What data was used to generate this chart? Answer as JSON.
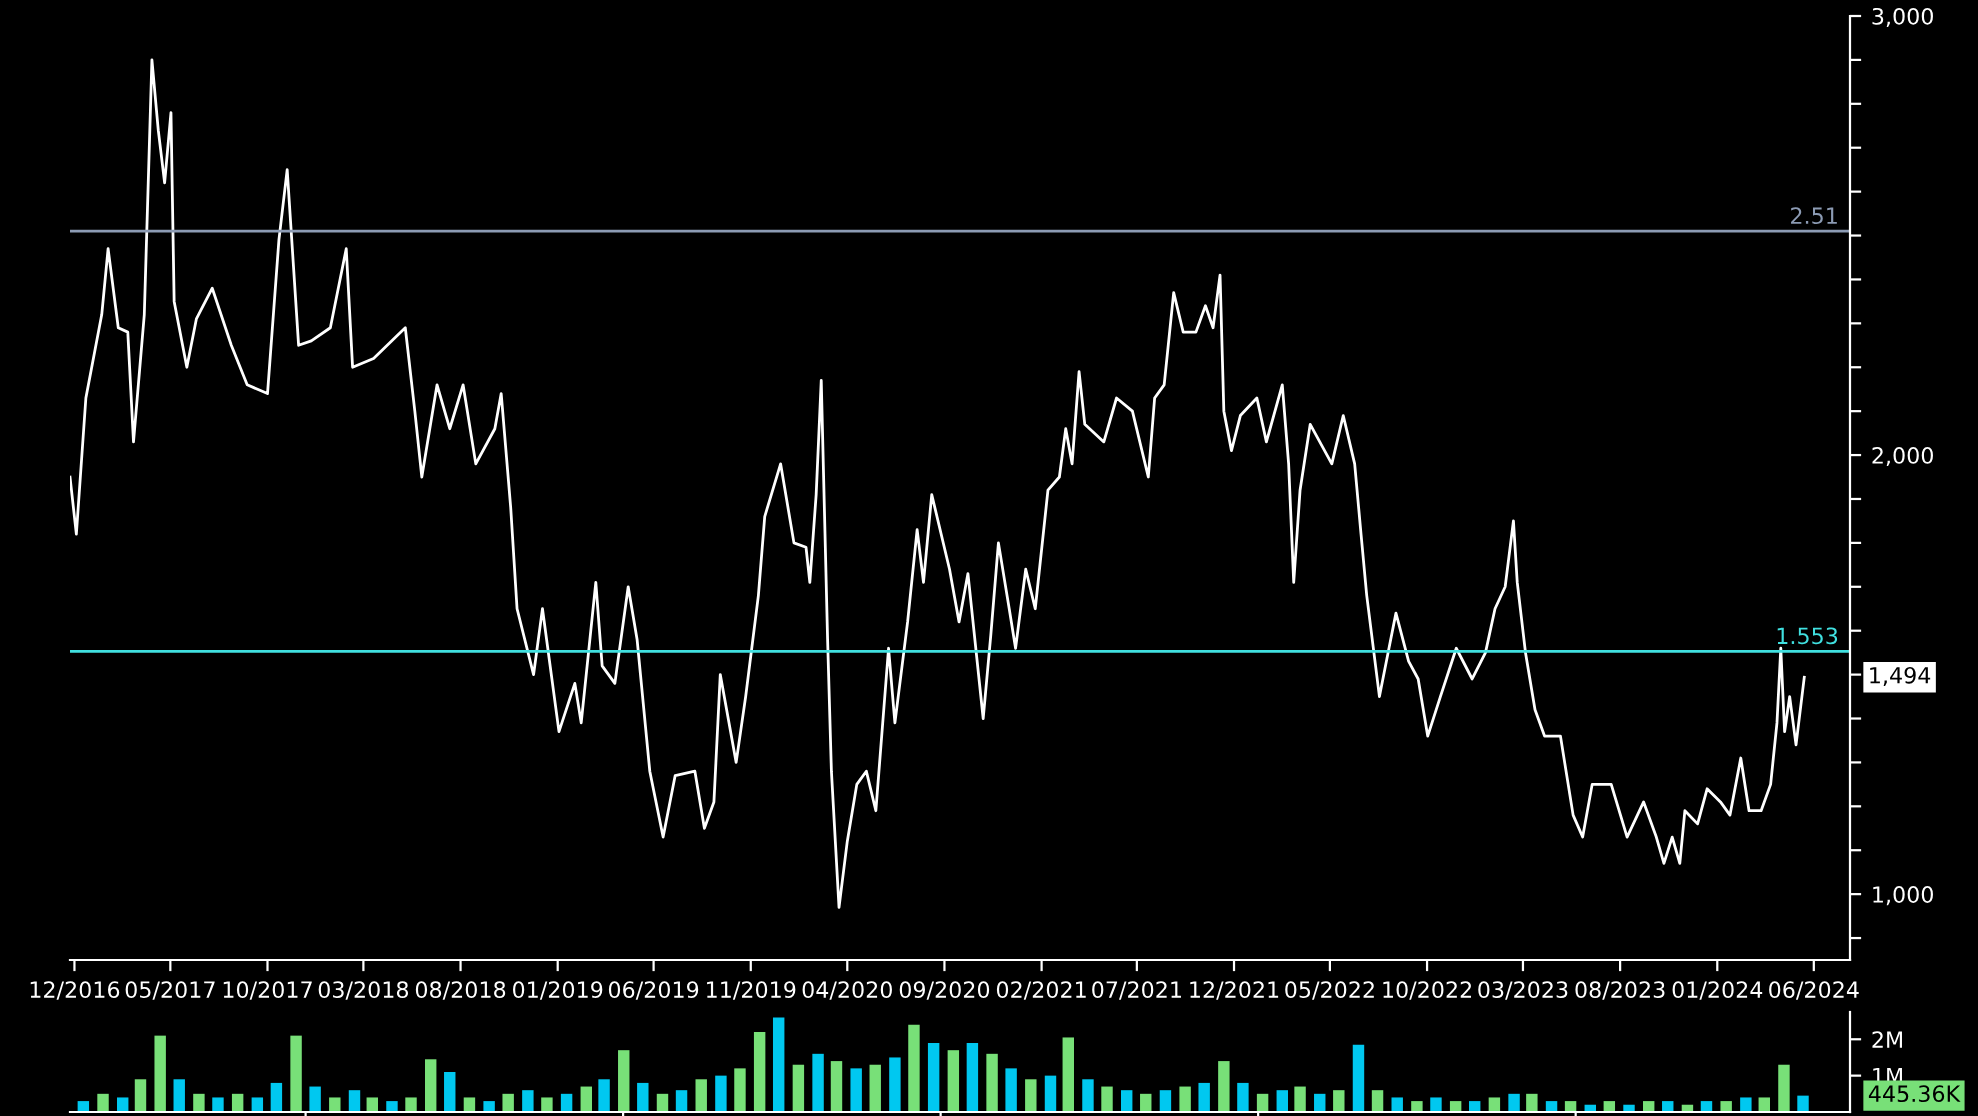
{
  "chart_data": [
    {
      "type": "line",
      "line_style": "solid",
      "marker": "none",
      "grid": false,
      "legend": false,
      "tick_labels": "xy",
      "xlim": [
        "2016-11-24",
        "2024-07-28"
      ],
      "xticks": [
        {
          "value": "2016-12-01",
          "label": "12/2016"
        },
        {
          "value": "2017-05-01",
          "label": "05/2017"
        },
        {
          "value": "2017-10-01",
          "label": "10/2017"
        },
        {
          "value": "2018-03-01",
          "label": "03/2018"
        },
        {
          "value": "2018-08-01",
          "label": "08/2018"
        },
        {
          "value": "2019-01-01",
          "label": "01/2019"
        },
        {
          "value": "2019-06-01",
          "label": "06/2019"
        },
        {
          "value": "2019-11-01",
          "label": "11/2019"
        },
        {
          "value": "2020-04-01",
          "label": "04/2020"
        },
        {
          "value": "2020-09-01",
          "label": "09/2020"
        },
        {
          "value": "2021-02-01",
          "label": "02/2021"
        },
        {
          "value": "2021-07-01",
          "label": "07/2021"
        },
        {
          "value": "2021-12-01",
          "label": "12/2021"
        },
        {
          "value": "2022-05-01",
          "label": "05/2022"
        },
        {
          "value": "2022-10-01",
          "label": "10/2022"
        },
        {
          "value": "2023-03-01",
          "label": "03/2023"
        },
        {
          "value": "2023-08-01",
          "label": "08/2023"
        },
        {
          "value": "2024-01-01",
          "label": "01/2024"
        },
        {
          "value": "2024-06-01",
          "label": "06/2024"
        }
      ],
      "ylim": [
        850,
        3000
      ],
      "yticks": [
        {
          "value": 900,
          "label": null
        },
        {
          "value": 1000,
          "label": "1,000"
        },
        {
          "value": 1100,
          "label": null
        },
        {
          "value": 1200,
          "label": null
        },
        {
          "value": 1300,
          "label": null
        },
        {
          "value": 1400,
          "label": null
        },
        {
          "value": 1500,
          "label": null
        },
        {
          "value": 1600,
          "label": null
        },
        {
          "value": 1700,
          "label": null
        },
        {
          "value": 1800,
          "label": null
        },
        {
          "value": 1900,
          "label": null
        },
        {
          "value": 2000,
          "label": "2,000"
        },
        {
          "value": 2100,
          "label": null
        },
        {
          "value": 2200,
          "label": null
        },
        {
          "value": 2300,
          "label": null
        },
        {
          "value": 2400,
          "label": null
        },
        {
          "value": 2500,
          "label": null
        },
        {
          "value": 2600,
          "label": null
        },
        {
          "value": 2700,
          "label": null
        },
        {
          "value": 2800,
          "label": null
        },
        {
          "value": 2900,
          "label": null
        },
        {
          "value": 3000,
          "label": "3,000"
        }
      ],
      "ref_lines": [
        {
          "axis": "y",
          "value": 2510,
          "color": "#8c9bb4"
        },
        {
          "axis": "y",
          "value": 1553,
          "color": "#40e0e0"
        }
      ],
      "annotations": [
        "1,494",
        {
          "text": "2.51",
          "x": "2024-07-28",
          "y": 2510
        },
        {
          "text": "1.553",
          "x": "2024-07-28",
          "y": 1553
        }
      ],
      "series": [
        {
          "color": "#ffffff",
          "x": [
            "2016-11-24",
            "2016-12-04",
            "2016-12-19",
            "2017-01-13",
            "2017-01-23",
            "2017-02-08",
            "2017-02-23",
            "2017-03-04",
            "2017-03-21",
            "2017-04-02",
            "2017-04-12",
            "2017-04-22",
            "2017-05-02",
            "2017-05-07",
            "2017-05-27",
            "2017-06-11",
            "2017-07-06",
            "2017-08-05",
            "2017-08-30",
            "2017-10-01",
            "2017-10-19",
            "2017-11-01",
            "2017-11-19",
            "2017-12-09",
            "2018-01-08",
            "2018-02-02",
            "2018-02-12",
            "2018-03-17",
            "2018-05-06",
            "2018-05-21",
            "2018-06-01",
            "2018-06-25",
            "2018-07-15",
            "2018-08-05",
            "2018-08-25",
            "2018-09-24",
            "2018-10-04",
            "2018-10-19",
            "2018-10-29",
            "2018-11-24",
            "2018-12-08",
            "2019-01-03",
            "2019-01-28",
            "2019-02-07",
            "2019-03-02",
            "2019-03-12",
            "2019-04-01",
            "2019-04-22",
            "2019-05-06",
            "2019-05-26",
            "2019-06-16",
            "2019-07-05",
            "2019-08-05",
            "2019-08-20",
            "2019-09-04",
            "2019-09-14",
            "2019-10-09",
            "2019-10-24",
            "2019-11-13",
            "2019-11-23",
            "2019-12-18",
            "2020-01-08",
            "2020-01-27",
            "2020-02-02",
            "2020-02-12",
            "2020-02-20",
            "2020-03-01",
            "2020-03-07",
            "2020-03-19",
            "2020-04-01",
            "2020-04-16",
            "2020-05-01",
            "2020-05-16",
            "2020-06-05",
            "2020-06-15",
            "2020-07-05",
            "2020-07-20",
            "2020-07-30",
            "2020-08-12",
            "2020-09-09",
            "2020-09-24",
            "2020-10-08",
            "2020-11-01",
            "2020-11-13",
            "2020-11-25",
            "2020-12-12",
            "2020-12-22",
            "2021-01-07",
            "2021-01-22",
            "2021-02-11",
            "2021-03-01",
            "2021-03-11",
            "2021-03-21",
            "2021-04-01",
            "2021-04-10",
            "2021-05-10",
            "2021-05-30",
            "2021-06-24",
            "2021-07-19",
            "2021-07-29",
            "2021-08-13",
            "2021-08-28",
            "2021-09-12",
            "2021-10-02",
            "2021-10-17",
            "2021-10-29",
            "2021-11-09",
            "2021-11-15",
            "2021-11-27",
            "2021-12-11",
            "2022-01-06",
            "2022-01-21",
            "2022-02-15",
            "2022-02-25",
            "2022-03-05",
            "2022-03-15",
            "2022-03-31",
            "2022-05-04",
            "2022-05-22",
            "2022-06-09",
            "2022-06-19",
            "2022-06-28",
            "2022-07-18",
            "2022-08-02",
            "2022-08-13",
            "2022-09-02",
            "2022-09-17",
            "2022-10-02",
            "2022-10-22",
            "2022-11-16",
            "2022-12-11",
            "2023-01-01",
            "2023-01-16",
            "2023-02-01",
            "2023-02-14",
            "2023-02-20",
            "2023-03-05",
            "2023-03-20",
            "2023-04-04",
            "2023-04-29",
            "2023-05-19",
            "2023-06-03",
            "2023-06-18",
            "2023-07-18",
            "2023-08-12",
            "2023-09-07",
            "2023-09-27",
            "2023-10-09",
            "2023-10-22",
            "2023-11-03",
            "2023-11-11",
            "2023-12-01",
            "2023-12-16",
            "2024-01-06",
            "2024-01-21",
            "2024-02-07",
            "2024-02-20",
            "2024-03-10",
            "2024-03-25",
            "2024-04-04",
            "2024-04-10",
            "2024-04-16",
            "2024-04-24",
            "2024-05-04",
            "2024-05-17"
          ],
          "values": [
            1950,
            1820,
            2130,
            2320,
            2470,
            2290,
            2280,
            2030,
            2320,
            2900,
            2740,
            2620,
            2780,
            2350,
            2200,
            2310,
            2380,
            2250,
            2160,
            2140,
            2490,
            2650,
            2250,
            2260,
            2290,
            2470,
            2200,
            2220,
            2290,
            2100,
            1950,
            2160,
            2060,
            2160,
            1980,
            2060,
            2140,
            1880,
            1650,
            1500,
            1650,
            1370,
            1480,
            1390,
            1710,
            1520,
            1480,
            1700,
            1580,
            1280,
            1130,
            1270,
            1280,
            1150,
            1210,
            1500,
            1300,
            1450,
            1680,
            1860,
            1980,
            1800,
            1790,
            1710,
            1910,
            2170,
            1580,
            1280,
            970,
            1120,
            1250,
            1280,
            1190,
            1560,
            1390,
            1620,
            1830,
            1710,
            1910,
            1740,
            1620,
            1730,
            1400,
            1590,
            1800,
            1650,
            1560,
            1740,
            1650,
            1920,
            1950,
            2060,
            1980,
            2190,
            2070,
            2030,
            2130,
            2100,
            1950,
            2130,
            2160,
            2370,
            2280,
            2280,
            2340,
            2290,
            2410,
            2100,
            2010,
            2090,
            2130,
            2030,
            2160,
            1980,
            1710,
            1920,
            2070,
            1980,
            2090,
            1980,
            1820,
            1680,
            1450,
            1560,
            1640,
            1530,
            1490,
            1360,
            1450,
            1560,
            1490,
            1550,
            1650,
            1700,
            1850,
            1710,
            1550,
            1420,
            1360,
            1360,
            1180,
            1130,
            1250,
            1250,
            1130,
            1210,
            1130,
            1070,
            1130,
            1070,
            1190,
            1160,
            1240,
            1210,
            1180,
            1310,
            1190,
            1190,
            1250,
            1390,
            1560,
            1370,
            1450,
            1340,
            1494
          ]
        }
      ]
    },
    {
      "type": "bar",
      "grid": false,
      "legend": false,
      "tick_labels": "y",
      "xlim": [
        "2016-11-24",
        "2024-07-28"
      ],
      "ylim": [
        0,
        2.75
      ],
      "yticks": [
        {
          "value": 1,
          "label": "1M"
        },
        {
          "value": 2,
          "label": "2M"
        }
      ],
      "annotations": [
        "445.36K"
      ],
      "x": [
        "2016-12-15",
        "2017-01-15",
        "2017-02-15",
        "2017-03-15",
        "2017-04-15",
        "2017-05-15",
        "2017-06-15",
        "2017-07-15",
        "2017-08-15",
        "2017-09-15",
        "2017-10-15",
        "2017-11-15",
        "2017-12-15",
        "2018-01-15",
        "2018-02-15",
        "2018-03-15",
        "2018-04-15",
        "2018-05-15",
        "2018-06-15",
        "2018-07-15",
        "2018-08-15",
        "2018-09-15",
        "2018-10-15",
        "2018-11-15",
        "2018-12-15",
        "2019-01-15",
        "2019-02-15",
        "2019-03-15",
        "2019-04-15",
        "2019-05-15",
        "2019-06-15",
        "2019-07-15",
        "2019-08-15",
        "2019-09-15",
        "2019-10-15",
        "2019-11-15",
        "2019-12-15",
        "2020-01-15",
        "2020-02-15",
        "2020-03-15",
        "2020-04-15",
        "2020-05-15",
        "2020-06-15",
        "2020-07-15",
        "2020-08-15",
        "2020-09-15",
        "2020-10-15",
        "2020-11-15",
        "2020-12-15",
        "2021-01-15",
        "2021-02-15",
        "2021-03-15",
        "2021-04-15",
        "2021-05-15",
        "2021-06-15",
        "2021-07-15",
        "2021-08-15",
        "2021-09-15",
        "2021-10-15",
        "2021-11-15",
        "2021-12-15",
        "2022-01-15",
        "2022-02-15",
        "2022-03-15",
        "2022-04-15",
        "2022-05-15",
        "2022-06-15",
        "2022-07-15",
        "2022-08-15",
        "2022-09-15",
        "2022-10-15",
        "2022-11-15",
        "2022-12-15",
        "2023-01-15",
        "2023-02-15",
        "2023-03-15",
        "2023-04-15",
        "2023-05-15",
        "2023-06-15",
        "2023-07-15",
        "2023-08-15",
        "2023-09-15",
        "2023-10-15",
        "2023-11-15",
        "2023-12-15",
        "2024-01-15",
        "2024-02-15",
        "2024-03-15",
        "2024-04-15",
        "2024-05-15"
      ],
      "series": [
        {
          "values": [
            0.3,
            0.5,
            0.4,
            0.9,
            2.1,
            0.9,
            0.5,
            0.4,
            0.5,
            0.4,
            0.8,
            2.1,
            0.7,
            0.4,
            0.6,
            0.4,
            0.3,
            0.4,
            1.45,
            1.1,
            0.4,
            0.3,
            0.5,
            0.6,
            0.4,
            0.5,
            0.7,
            0.9,
            1.7,
            0.8,
            0.5,
            0.6,
            0.9,
            1.0,
            1.2,
            2.2,
            2.6,
            1.3,
            1.6,
            1.4,
            1.2,
            1.3,
            1.5,
            2.4,
            1.9,
            1.7,
            1.9,
            1.6,
            1.2,
            0.9,
            1.0,
            2.05,
            0.9,
            0.7,
            0.6,
            0.5,
            0.6,
            0.7,
            0.8,
            1.4,
            0.8,
            0.5,
            0.6,
            0.7,
            0.5,
            0.6,
            1.85,
            0.6,
            0.4,
            0.3,
            0.4,
            0.3,
            0.3,
            0.4,
            0.5,
            0.5,
            0.3,
            0.3,
            0.2,
            0.3,
            0.2,
            0.3,
            0.3,
            0.2,
            0.3,
            0.3,
            0.4,
            0.4,
            1.3,
            0.45
          ],
          "colors": [
            "#00c8f0",
            "#78e078",
            "#00c8f0",
            "#78e078",
            "#78e078",
            "#00c8f0",
            "#78e078",
            "#00c8f0",
            "#78e078",
            "#00c8f0",
            "#00c8f0",
            "#78e078",
            "#00c8f0",
            "#78e078",
            "#00c8f0",
            "#78e078",
            "#00c8f0",
            "#78e078",
            "#78e078",
            "#00c8f0",
            "#78e078",
            "#00c8f0",
            "#78e078",
            "#00c8f0",
            "#78e078",
            "#00c8f0",
            "#78e078",
            "#00c8f0",
            "#78e078",
            "#00c8f0",
            "#78e078",
            "#00c8f0",
            "#78e078",
            "#00c8f0",
            "#78e078",
            "#78e078",
            "#00c8f0",
            "#78e078",
            "#00c8f0",
            "#78e078",
            "#00c8f0",
            "#78e078",
            "#00c8f0",
            "#78e078",
            "#00c8f0",
            "#78e078",
            "#00c8f0",
            "#78e078",
            "#00c8f0",
            "#78e078",
            "#00c8f0",
            "#78e078",
            "#00c8f0",
            "#78e078",
            "#00c8f0",
            "#78e078",
            "#00c8f0",
            "#78e078",
            "#00c8f0",
            "#78e078",
            "#00c8f0",
            "#78e078",
            "#00c8f0",
            "#78e078",
            "#00c8f0",
            "#78e078",
            "#00c8f0",
            "#78e078",
            "#00c8f0",
            "#78e078",
            "#00c8f0",
            "#78e078",
            "#00c8f0",
            "#78e078",
            "#00c8f0",
            "#78e078",
            "#00c8f0",
            "#78e078",
            "#00c8f0",
            "#78e078",
            "#00c8f0",
            "#78e078",
            "#00c8f0",
            "#78e078",
            "#00c8f0",
            "#78e078",
            "#00c8f0",
            "#78e078",
            "#78e078",
            "#00c8f0"
          ]
        }
      ]
    }
  ]
}
